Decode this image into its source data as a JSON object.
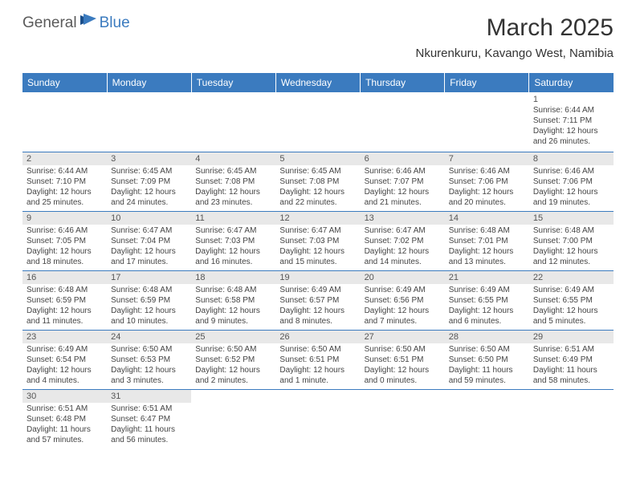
{
  "logo": {
    "text1": "General",
    "text2": "Blue"
  },
  "title": "March 2025",
  "location": "Nkurenkuru, Kavango West, Namibia",
  "day_headers": [
    "Sunday",
    "Monday",
    "Tuesday",
    "Wednesday",
    "Thursday",
    "Friday",
    "Saturday"
  ],
  "colors": {
    "header_bg": "#3b7bbf",
    "header_text": "#ffffff",
    "day_num_bg": "#e8e8e8",
    "text": "#444444",
    "border": "#3b7bbf"
  },
  "weeks": [
    [
      null,
      null,
      null,
      null,
      null,
      null,
      {
        "n": "1",
        "sr": "Sunrise: 6:44 AM",
        "ss": "Sunset: 7:11 PM",
        "dl": "Daylight: 12 hours and 26 minutes."
      }
    ],
    [
      {
        "n": "2",
        "sr": "Sunrise: 6:44 AM",
        "ss": "Sunset: 7:10 PM",
        "dl": "Daylight: 12 hours and 25 minutes."
      },
      {
        "n": "3",
        "sr": "Sunrise: 6:45 AM",
        "ss": "Sunset: 7:09 PM",
        "dl": "Daylight: 12 hours and 24 minutes."
      },
      {
        "n": "4",
        "sr": "Sunrise: 6:45 AM",
        "ss": "Sunset: 7:08 PM",
        "dl": "Daylight: 12 hours and 23 minutes."
      },
      {
        "n": "5",
        "sr": "Sunrise: 6:45 AM",
        "ss": "Sunset: 7:08 PM",
        "dl": "Daylight: 12 hours and 22 minutes."
      },
      {
        "n": "6",
        "sr": "Sunrise: 6:46 AM",
        "ss": "Sunset: 7:07 PM",
        "dl": "Daylight: 12 hours and 21 minutes."
      },
      {
        "n": "7",
        "sr": "Sunrise: 6:46 AM",
        "ss": "Sunset: 7:06 PM",
        "dl": "Daylight: 12 hours and 20 minutes."
      },
      {
        "n": "8",
        "sr": "Sunrise: 6:46 AM",
        "ss": "Sunset: 7:06 PM",
        "dl": "Daylight: 12 hours and 19 minutes."
      }
    ],
    [
      {
        "n": "9",
        "sr": "Sunrise: 6:46 AM",
        "ss": "Sunset: 7:05 PM",
        "dl": "Daylight: 12 hours and 18 minutes."
      },
      {
        "n": "10",
        "sr": "Sunrise: 6:47 AM",
        "ss": "Sunset: 7:04 PM",
        "dl": "Daylight: 12 hours and 17 minutes."
      },
      {
        "n": "11",
        "sr": "Sunrise: 6:47 AM",
        "ss": "Sunset: 7:03 PM",
        "dl": "Daylight: 12 hours and 16 minutes."
      },
      {
        "n": "12",
        "sr": "Sunrise: 6:47 AM",
        "ss": "Sunset: 7:03 PM",
        "dl": "Daylight: 12 hours and 15 minutes."
      },
      {
        "n": "13",
        "sr": "Sunrise: 6:47 AM",
        "ss": "Sunset: 7:02 PM",
        "dl": "Daylight: 12 hours and 14 minutes."
      },
      {
        "n": "14",
        "sr": "Sunrise: 6:48 AM",
        "ss": "Sunset: 7:01 PM",
        "dl": "Daylight: 12 hours and 13 minutes."
      },
      {
        "n": "15",
        "sr": "Sunrise: 6:48 AM",
        "ss": "Sunset: 7:00 PM",
        "dl": "Daylight: 12 hours and 12 minutes."
      }
    ],
    [
      {
        "n": "16",
        "sr": "Sunrise: 6:48 AM",
        "ss": "Sunset: 6:59 PM",
        "dl": "Daylight: 12 hours and 11 minutes."
      },
      {
        "n": "17",
        "sr": "Sunrise: 6:48 AM",
        "ss": "Sunset: 6:59 PM",
        "dl": "Daylight: 12 hours and 10 minutes."
      },
      {
        "n": "18",
        "sr": "Sunrise: 6:48 AM",
        "ss": "Sunset: 6:58 PM",
        "dl": "Daylight: 12 hours and 9 minutes."
      },
      {
        "n": "19",
        "sr": "Sunrise: 6:49 AM",
        "ss": "Sunset: 6:57 PM",
        "dl": "Daylight: 12 hours and 8 minutes."
      },
      {
        "n": "20",
        "sr": "Sunrise: 6:49 AM",
        "ss": "Sunset: 6:56 PM",
        "dl": "Daylight: 12 hours and 7 minutes."
      },
      {
        "n": "21",
        "sr": "Sunrise: 6:49 AM",
        "ss": "Sunset: 6:55 PM",
        "dl": "Daylight: 12 hours and 6 minutes."
      },
      {
        "n": "22",
        "sr": "Sunrise: 6:49 AM",
        "ss": "Sunset: 6:55 PM",
        "dl": "Daylight: 12 hours and 5 minutes."
      }
    ],
    [
      {
        "n": "23",
        "sr": "Sunrise: 6:49 AM",
        "ss": "Sunset: 6:54 PM",
        "dl": "Daylight: 12 hours and 4 minutes."
      },
      {
        "n": "24",
        "sr": "Sunrise: 6:50 AM",
        "ss": "Sunset: 6:53 PM",
        "dl": "Daylight: 12 hours and 3 minutes."
      },
      {
        "n": "25",
        "sr": "Sunrise: 6:50 AM",
        "ss": "Sunset: 6:52 PM",
        "dl": "Daylight: 12 hours and 2 minutes."
      },
      {
        "n": "26",
        "sr": "Sunrise: 6:50 AM",
        "ss": "Sunset: 6:51 PM",
        "dl": "Daylight: 12 hours and 1 minute."
      },
      {
        "n": "27",
        "sr": "Sunrise: 6:50 AM",
        "ss": "Sunset: 6:51 PM",
        "dl": "Daylight: 12 hours and 0 minutes."
      },
      {
        "n": "28",
        "sr": "Sunrise: 6:50 AM",
        "ss": "Sunset: 6:50 PM",
        "dl": "Daylight: 11 hours and 59 minutes."
      },
      {
        "n": "29",
        "sr": "Sunrise: 6:51 AM",
        "ss": "Sunset: 6:49 PM",
        "dl": "Daylight: 11 hours and 58 minutes."
      }
    ],
    [
      {
        "n": "30",
        "sr": "Sunrise: 6:51 AM",
        "ss": "Sunset: 6:48 PM",
        "dl": "Daylight: 11 hours and 57 minutes."
      },
      {
        "n": "31",
        "sr": "Sunrise: 6:51 AM",
        "ss": "Sunset: 6:47 PM",
        "dl": "Daylight: 11 hours and 56 minutes."
      },
      null,
      null,
      null,
      null,
      null
    ]
  ]
}
